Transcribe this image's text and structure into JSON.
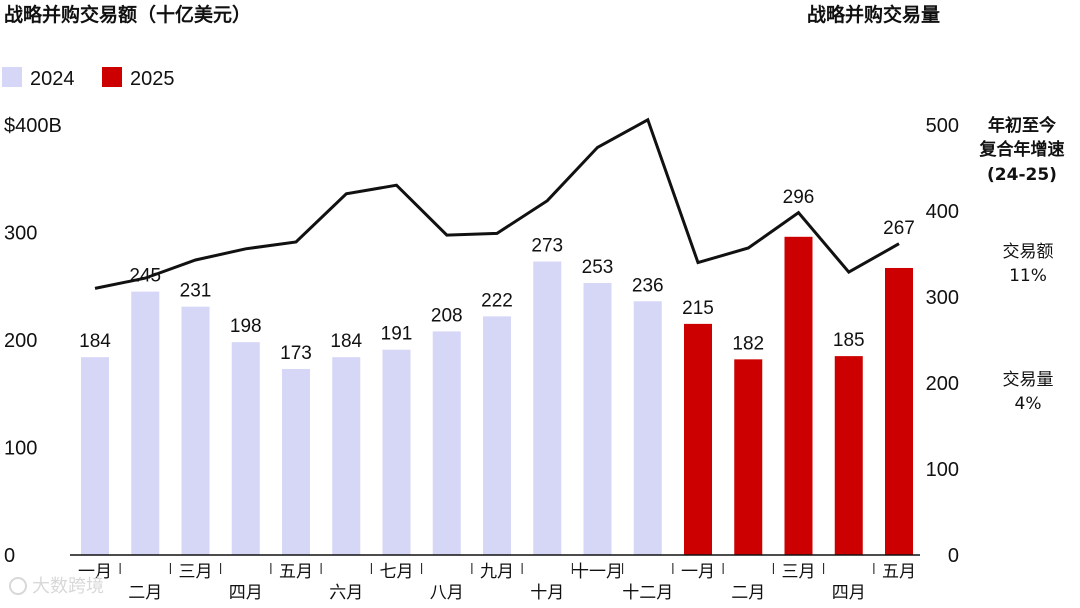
{
  "chart_data": {
    "type": "bar",
    "title": "战略并购交易额（十亿美元）",
    "right_title": "战略并购交易量",
    "categories": [
      "一月",
      "二月",
      "三月",
      "四月",
      "五月",
      "六月",
      "七月",
      "八月",
      "九月",
      "十月",
      "十一月",
      "十二月",
      "一月",
      "二月",
      "三月",
      "四月",
      "五月"
    ],
    "series": [
      {
        "name": "2024",
        "color": "#d6d6f7",
        "values": [
          184,
          245,
          231,
          198,
          173,
          184,
          191,
          208,
          222,
          273,
          253,
          236,
          null,
          null,
          null,
          null,
          null
        ]
      },
      {
        "name": "2025",
        "color": "#cc0000",
        "values": [
          null,
          null,
          null,
          null,
          null,
          null,
          null,
          null,
          null,
          null,
          null,
          null,
          215,
          182,
          296,
          185,
          267
        ]
      }
    ],
    "line_series": {
      "name": "战略并购交易量",
      "color": "#111111",
      "values": [
        310,
        322,
        343,
        356,
        364,
        420,
        430,
        372,
        374,
        412,
        474,
        506,
        340,
        357,
        398,
        329,
        362
      ]
    },
    "y_left": {
      "ticks": [
        "$400B",
        "300",
        "200",
        "100",
        "0"
      ],
      "tick_values": [
        400,
        300,
        200,
        100,
        0
      ],
      "ylim": [
        0,
        400
      ]
    },
    "y_right": {
      "ticks": [
        "500",
        "400",
        "300",
        "200",
        "100",
        "0"
      ],
      "tick_values": [
        500,
        400,
        300,
        200,
        100,
        0
      ],
      "ylim": [
        0,
        500
      ]
    },
    "legend": {
      "position": "top-left",
      "items": [
        {
          "label": "2024",
          "color": "#d6d6f7"
        },
        {
          "label": "2025",
          "color": "#cc0000"
        }
      ]
    },
    "cagr": {
      "heading": [
        "年初至今",
        "复合年增速",
        "(24-25)"
      ],
      "items": [
        {
          "label": "交易额",
          "value": "11%"
        },
        {
          "label": "交易量",
          "value": "4%"
        }
      ]
    },
    "grid": false
  },
  "watermark": "大数跨境"
}
